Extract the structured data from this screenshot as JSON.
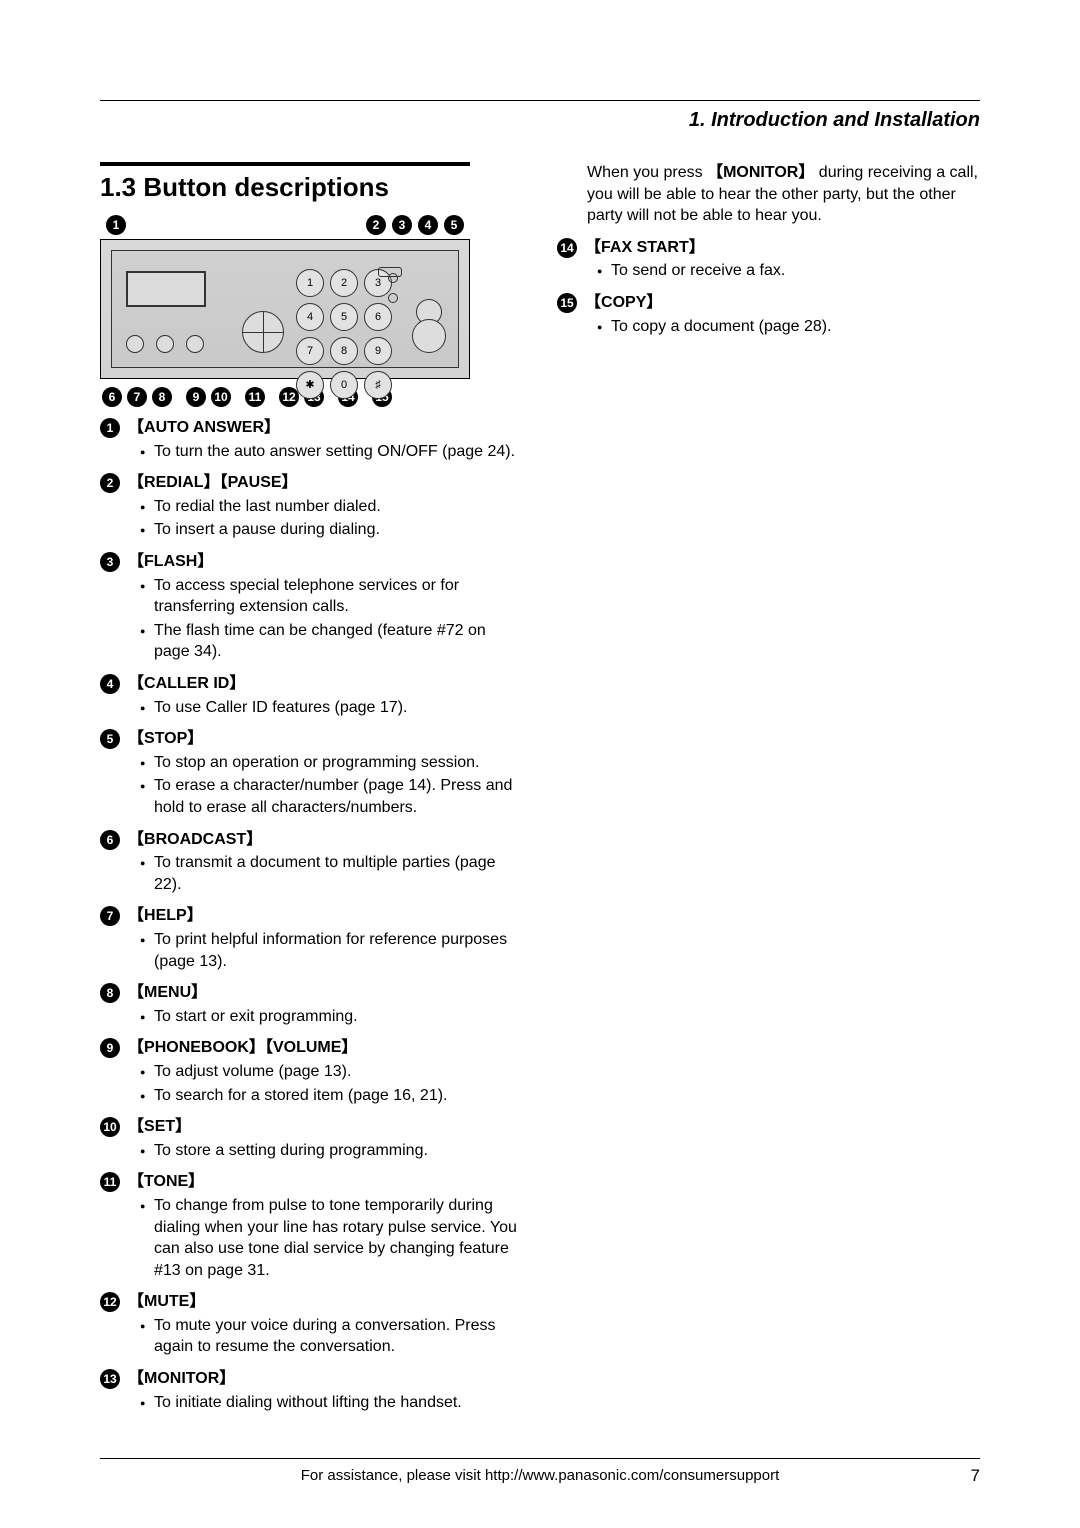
{
  "header": {
    "chapter": "1. Introduction and Installation"
  },
  "section": {
    "number": "1.3",
    "title": "Button descriptions"
  },
  "panel": {
    "keypad": [
      "1",
      "2",
      "3",
      "4",
      "5",
      "6",
      "7",
      "8",
      "9",
      "✱",
      "0",
      "♯"
    ],
    "top_callouts_left": [
      "1"
    ],
    "top_callouts_right": [
      "2",
      "3",
      "4",
      "5"
    ],
    "bottom_groups": [
      [
        "6",
        "7",
        "8"
      ],
      [
        "9",
        "10"
      ],
      [
        "11"
      ],
      [
        "12",
        "13"
      ],
      [
        "14"
      ],
      [
        "15"
      ]
    ],
    "panel_bg": "#d3d3d3"
  },
  "items_left": [
    {
      "n": "1",
      "labels": [
        "AUTO ANSWER"
      ],
      "bullets": [
        "To turn the auto answer setting ON/OFF (page 24)."
      ]
    },
    {
      "n": "2",
      "labels": [
        "REDIAL",
        "PAUSE"
      ],
      "bullets": [
        "To redial the last number dialed.",
        "To insert a pause during dialing."
      ]
    },
    {
      "n": "3",
      "labels": [
        "FLASH"
      ],
      "bullets": [
        "To access special telephone services or for transferring extension calls.",
        "The flash time can be changed (feature #72 on page 34)."
      ]
    },
    {
      "n": "4",
      "labels": [
        "CALLER ID"
      ],
      "bullets": [
        "To use Caller ID features (page 17)."
      ]
    },
    {
      "n": "5",
      "labels": [
        "STOP"
      ],
      "bullets": [
        "To stop an operation or programming session.",
        "To erase a character/number (page 14). Press and hold to erase all characters/numbers."
      ]
    },
    {
      "n": "6",
      "labels": [
        "BROADCAST"
      ],
      "bullets": [
        "To transmit a document to multiple parties (page 22)."
      ]
    },
    {
      "n": "7",
      "labels": [
        "HELP"
      ],
      "bullets": [
        "To print helpful information for reference purposes (page 13)."
      ]
    },
    {
      "n": "8",
      "labels": [
        "MENU"
      ],
      "bullets": [
        "To start or exit programming."
      ]
    },
    {
      "n": "9",
      "labels": [
        "PHONEBOOK",
        "VOLUME"
      ],
      "bullets": [
        "To adjust volume (page 13).",
        "To search for a stored item (page 16, 21)."
      ]
    },
    {
      "n": "10",
      "labels": [
        "SET"
      ],
      "bullets": [
        "To store a setting during programming."
      ]
    },
    {
      "n": "11",
      "labels": [
        "TONE"
      ],
      "bullets": [
        "To change from pulse to tone temporarily during dialing when your line has rotary pulse service. You can also use tone dial service by changing feature #13 on page 31."
      ]
    },
    {
      "n": "12",
      "labels": [
        "MUTE"
      ],
      "bullets": [
        "To mute your voice during a conversation. Press again to resume the conversation."
      ]
    },
    {
      "n": "13",
      "labels": [
        "MONITOR"
      ],
      "bullets": [
        "To initiate dialing without lifting the handset."
      ]
    }
  ],
  "right_continuation": {
    "pre": "When you press ",
    "key": "MONITOR",
    "post": " during receiving a call, you will be able to hear the other party, but the other party will not be able to hear you."
  },
  "items_right": [
    {
      "n": "14",
      "labels": [
        "FAX START"
      ],
      "bullets": [
        "To send or receive a fax."
      ]
    },
    {
      "n": "15",
      "labels": [
        "COPY"
      ],
      "bullets": [
        "To copy a document (page 28)."
      ]
    }
  ],
  "footer": {
    "text": "For assistance, please visit http://www.panasonic.com/consumersupport",
    "page": "7"
  }
}
